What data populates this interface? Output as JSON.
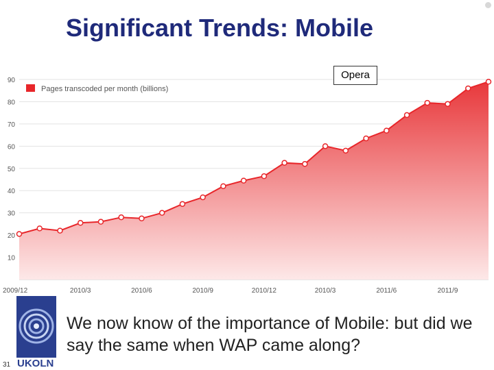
{
  "slide": {
    "title": "Significant Trends: Mobile",
    "body": "We now know of the importance of Mobile: but did we say the same when WAP came along?",
    "source_label": "Opera",
    "logo_text": "UKOLN",
    "page_number": "31"
  },
  "colors": {
    "title": "#1f2a7a",
    "series": "#e8262a",
    "area_top": "#e8383b",
    "area_bottom": "#fde8e8",
    "grid": "#e3e3e3",
    "logo": "#2a3f8f"
  },
  "chart_data": {
    "type": "area",
    "series": [
      {
        "name": "Pages transcoded per month (billions)",
        "values": [
          20.5,
          23,
          22,
          25.5,
          26,
          28,
          27.5,
          30,
          34,
          37,
          42,
          44.5,
          46.5,
          52.5,
          52,
          60,
          58,
          63.5,
          67,
          74,
          79.5,
          79,
          86,
          89
        ]
      }
    ],
    "x_tick_labels": [
      "2009/12",
      "2010/3",
      "2010/6",
      "2010/9",
      "2010/12",
      "2010/3",
      "2011/6",
      "2011/9"
    ],
    "y_ticks": [
      10,
      20,
      30,
      40,
      50,
      60,
      70,
      80,
      90
    ],
    "ylim": [
      0,
      90
    ],
    "grid": true,
    "legend_position": "top-left"
  }
}
